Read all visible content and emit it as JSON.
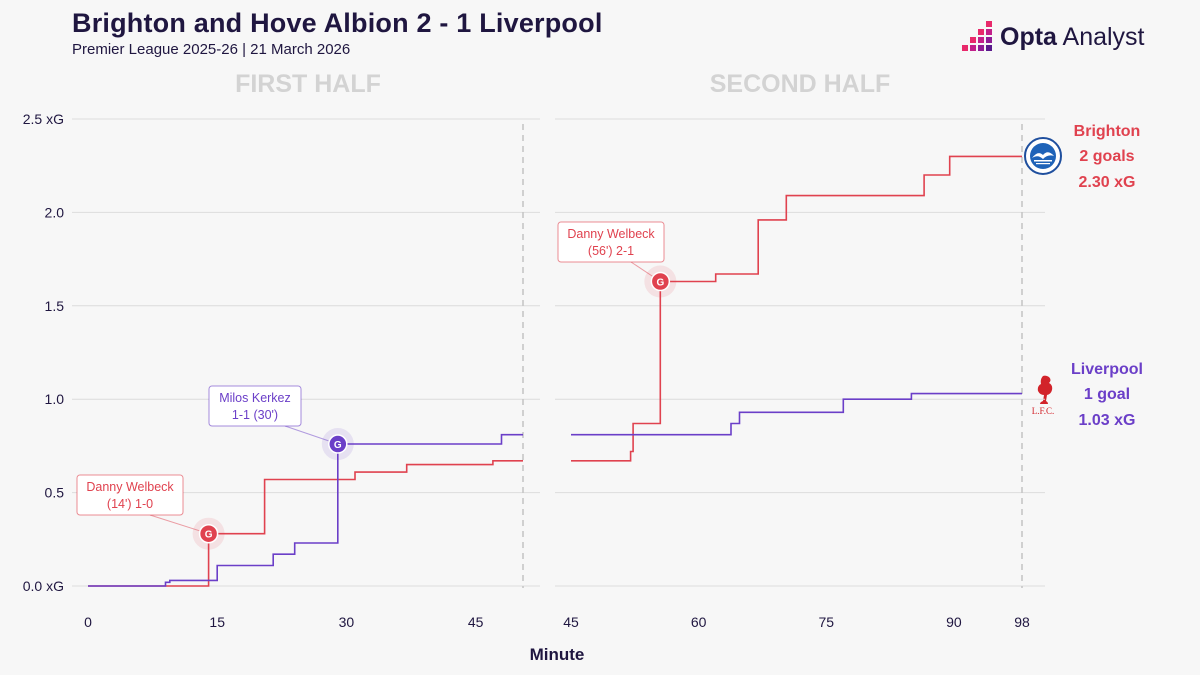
{
  "header": {
    "title": "Brighton and Hove Albion 2 - 1 Liverpool",
    "subtitle": "Premier League 2025-26 | 21 March 2026",
    "brand_bold": "Opta",
    "brand_light": " Analyst"
  },
  "colors": {
    "brighton": "#e0424f",
    "liverpool": "#6b3fc8",
    "grid": "#dcdcdc",
    "text": "#1f1640",
    "half_label": "#d3d3d3"
  },
  "chart_data": {
    "type": "line",
    "title": "Brighton and Hove Albion 2 - 1 Liverpool",
    "xlabel": "Minute",
    "ylabel": "",
    "ylim": [
      0,
      2.5
    ],
    "y_ticks": [
      {
        "value": 0,
        "label": "0.0 xG"
      },
      {
        "value": 0.5,
        "label": "0.5"
      },
      {
        "value": 1.0,
        "label": "1.0"
      },
      {
        "value": 1.5,
        "label": "1.5"
      },
      {
        "value": 2.0,
        "label": "2.0"
      },
      {
        "value": 2.5,
        "label": "2.5 xG"
      }
    ],
    "panels": [
      {
        "name": "first-half",
        "label": "FIRST HALF",
        "xlim": [
          0,
          50.5
        ],
        "x_ticks": [
          0,
          15,
          30,
          45
        ],
        "end_line": 50.5,
        "series": [
          {
            "name": "Brighton",
            "steps": [
              [
                0,
                0
              ],
              [
                14,
                0
              ],
              [
                14,
                0.28
              ],
              [
                20.5,
                0.28
              ],
              [
                20.5,
                0.57
              ],
              [
                31,
                0.57
              ],
              [
                31,
                0.61
              ],
              [
                37,
                0.61
              ],
              [
                37,
                0.65
              ],
              [
                47,
                0.65
              ],
              [
                47,
                0.67
              ],
              [
                50.5,
                0.67
              ]
            ]
          },
          {
            "name": "Liverpool",
            "steps": [
              [
                0,
                0
              ],
              [
                9,
                0
              ],
              [
                9,
                0.02
              ],
              [
                9.5,
                0.02
              ],
              [
                9.5,
                0.03
              ],
              [
                15,
                0.03
              ],
              [
                15,
                0.11
              ],
              [
                21.5,
                0.11
              ],
              [
                21.5,
                0.17
              ],
              [
                24,
                0.17
              ],
              [
                24,
                0.23
              ],
              [
                29,
                0.23
              ],
              [
                29,
                0.76
              ],
              [
                48,
                0.76
              ],
              [
                48,
                0.81
              ],
              [
                50.5,
                0.81
              ]
            ]
          }
        ],
        "annotations": [
          {
            "series": "Brighton",
            "minute": 14,
            "xg": 0.28,
            "marker": "G",
            "line1": "Danny Welbeck",
            "line2": "(14') 1-0"
          },
          {
            "series": "Liverpool",
            "minute": 29,
            "xg": 0.76,
            "marker": "G",
            "line1": "Milos Kerkez",
            "line2": "1-1 (30')"
          }
        ]
      },
      {
        "name": "second-half",
        "label": "SECOND HALF",
        "xlim": [
          45,
          98
        ],
        "x_ticks": [
          45,
          60,
          75,
          90,
          98
        ],
        "end_line": 98,
        "series": [
          {
            "name": "Brighton",
            "steps": [
              [
                45,
                0.67
              ],
              [
                52,
                0.67
              ],
              [
                52,
                0.72
              ],
              [
                52.3,
                0.72
              ],
              [
                52.3,
                0.87
              ],
              [
                55.5,
                0.87
              ],
              [
                55.5,
                1.63
              ],
              [
                62,
                1.63
              ],
              [
                62,
                1.67
              ],
              [
                67,
                1.67
              ],
              [
                67,
                1.96
              ],
              [
                70.3,
                1.96
              ],
              [
                70.3,
                2.09
              ],
              [
                86.5,
                2.09
              ],
              [
                86.5,
                2.2
              ],
              [
                89.5,
                2.2
              ],
              [
                89.5,
                2.3
              ],
              [
                98,
                2.3
              ]
            ]
          },
          {
            "name": "Liverpool",
            "steps": [
              [
                45,
                0.81
              ],
              [
                63.8,
                0.81
              ],
              [
                63.8,
                0.87
              ],
              [
                64.8,
                0.87
              ],
              [
                64.8,
                0.93
              ],
              [
                77,
                0.93
              ],
              [
                77,
                1.0
              ],
              [
                85,
                1.0
              ],
              [
                85,
                1.03
              ],
              [
                98,
                1.03
              ]
            ]
          }
        ],
        "annotations": [
          {
            "series": "Brighton",
            "minute": 55.5,
            "xg": 1.63,
            "marker": "G",
            "line1": "Danny Welbeck",
            "line2": "(56') 2-1"
          }
        ]
      }
    ],
    "legend": [
      {
        "team": "Brighton",
        "goals": "2 goals",
        "xg": "2.30 xG",
        "final_xg": 2.3
      },
      {
        "team": "Liverpool",
        "goals": "1 goal",
        "xg": "1.03 xG",
        "final_xg": 1.03
      }
    ],
    "crests": {
      "liverpool_text": "L.F.C."
    }
  }
}
